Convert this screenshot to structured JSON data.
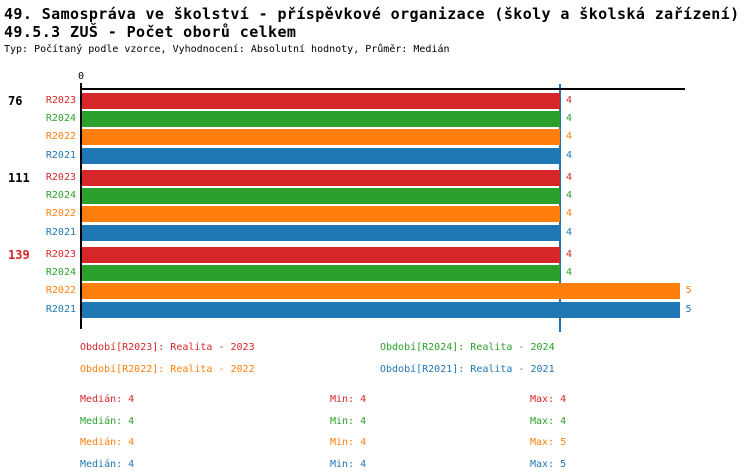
{
  "header": {
    "title_line1": "49. Samospráva ve školství - příspěvkové organizace (školy a školská zařízení)",
    "title_line2": "49.5.3 ZUŠ - Počet oborů celkem",
    "meta_line": "Typ: Počítaný podle vzorce, Vyhodnocení: Absolutní hodnoty, Průměr: Medián"
  },
  "chart_data": {
    "type": "bar",
    "orientation": "horizontal",
    "x_axis": {
      "origin_tick_label": "0",
      "xlim": [
        0,
        5.05
      ],
      "median_gridline_value": 4,
      "median_gridline_color": "#1f77b4",
      "grid": "single-median-line",
      "top_spine": true,
      "bottom_spine": false
    },
    "series_colors": {
      "R2023": "#d62728",
      "R2024": "#2ca02c",
      "R2022": "#ff7f0e",
      "R2021": "#1f77b4"
    },
    "groups": [
      {
        "label": "76",
        "label_color": "#000000",
        "bars": [
          {
            "series": "R2023",
            "value": 4,
            "value_label": "4"
          },
          {
            "series": "R2024",
            "value": 4,
            "value_label": "4"
          },
          {
            "series": "R2022",
            "value": 4,
            "value_label": "4"
          },
          {
            "series": "R2021",
            "value": 4,
            "value_label": "4"
          }
        ]
      },
      {
        "label": "111",
        "label_color": "#000000",
        "bars": [
          {
            "series": "R2023",
            "value": 4,
            "value_label": "4"
          },
          {
            "series": "R2024",
            "value": 4,
            "value_label": "4"
          },
          {
            "series": "R2022",
            "value": 4,
            "value_label": "4"
          },
          {
            "series": "R2021",
            "value": 4,
            "value_label": "4"
          }
        ]
      },
      {
        "label": "139",
        "label_color": "#d62728",
        "bars": [
          {
            "series": "R2023",
            "value": 4,
            "value_label": "4"
          },
          {
            "series": "R2024",
            "value": 4,
            "value_label": "4"
          },
          {
            "series": "R2022",
            "value": 5,
            "value_label": "5"
          },
          {
            "series": "R2021",
            "value": 5,
            "value_label": "5"
          }
        ]
      }
    ],
    "legend": {
      "position": "below-chart, 2 columns",
      "items": [
        {
          "label": "Období[R2023]: Realita - 2023",
          "color": "#d62728"
        },
        {
          "label": "Období[R2024]: Realita - 2024",
          "color": "#2ca02c"
        },
        {
          "label": "Období[R2022]: Realita - 2022",
          "color": "#ff7f0e"
        },
        {
          "label": "Období[R2021]: Realita - 2021",
          "color": "#1f77b4"
        }
      ]
    },
    "stats": {
      "labels": {
        "median": "Medián",
        "min": "Min",
        "max": "Max"
      },
      "rows": [
        {
          "series": "R2023",
          "color": "#d62728",
          "median": "4",
          "min": "4",
          "max": "4"
        },
        {
          "series": "R2024",
          "color": "#2ca02c",
          "median": "4",
          "min": "4",
          "max": "4"
        },
        {
          "series": "R2022",
          "color": "#ff7f0e",
          "median": "4",
          "min": "4",
          "max": "5"
        },
        {
          "series": "R2021",
          "color": "#1f77b4",
          "median": "4",
          "min": "4",
          "max": "5"
        }
      ]
    }
  }
}
